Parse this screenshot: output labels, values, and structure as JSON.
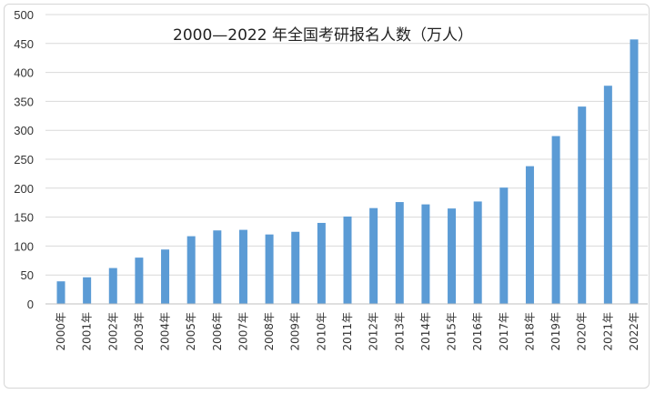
{
  "chart_data": {
    "type": "bar",
    "title": "2000—2022 年全国考研报名人数（万人）",
    "xlabel": "",
    "ylabel": "",
    "ylim": [
      0,
      500
    ],
    "yticks": [
      0,
      50,
      100,
      150,
      200,
      250,
      300,
      350,
      400,
      450,
      500
    ],
    "grid": true,
    "legend": "none",
    "bar_color": "#5B9BD5",
    "categories": [
      "2000年",
      "2001年",
      "2002年",
      "2003年",
      "2004年",
      "2005年",
      "2006年",
      "2007年",
      "2008年",
      "2009年",
      "2010年",
      "2011年",
      "2012年",
      "2013年",
      "2014年",
      "2015年",
      "2016年",
      "2017年",
      "2018年",
      "2019年",
      "2020年",
      "2021年",
      "2022年"
    ],
    "values": [
      39,
      46,
      62,
      80,
      94,
      117,
      127,
      128,
      120,
      124.6,
      140,
      151,
      165.6,
      176,
      172,
      164.9,
      177,
      201,
      238,
      290,
      341,
      377,
      457
    ]
  }
}
